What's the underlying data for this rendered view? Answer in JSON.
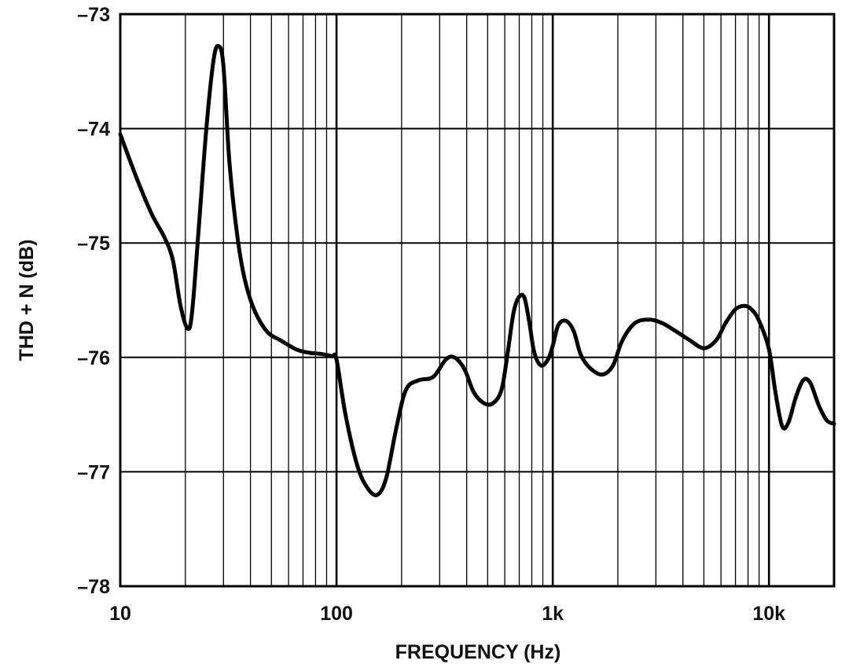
{
  "chart_data": {
    "type": "line",
    "title": "",
    "xlabel": "FREQUENCY (Hz)",
    "ylabel": "THD + N (dB)",
    "x_scale": "log",
    "xlim": [
      10,
      20000
    ],
    "ylim": [
      -78,
      -73
    ],
    "x_ticks": [
      {
        "value": 10,
        "label": "10"
      },
      {
        "value": 100,
        "label": "100"
      },
      {
        "value": 1000,
        "label": "1k"
      },
      {
        "value": 10000,
        "label": "10k"
      }
    ],
    "y_ticks": [
      {
        "value": -73,
        "label": "–73"
      },
      {
        "value": -74,
        "label": "–74"
      },
      {
        "value": -75,
        "label": "–75"
      },
      {
        "value": -76,
        "label": "–76"
      },
      {
        "value": -77,
        "label": "–77"
      },
      {
        "value": -78,
        "label": "–78"
      }
    ],
    "grid": true,
    "legend": "none",
    "line_color": "#000000",
    "series": [
      {
        "x": [
          10,
          12,
          14,
          16,
          17.5,
          19,
          20.5,
          21.5,
          23,
          25,
          27,
          28.5,
          30,
          32,
          35,
          38,
          42,
          48,
          55,
          65,
          75,
          85,
          95,
          100,
          110,
          125,
          140,
          155,
          170,
          190,
          210,
          240,
          280,
          320,
          350,
          390,
          430,
          480,
          530,
          580,
          620,
          660,
          700,
          740,
          780,
          820,
          880,
          950,
          1000,
          1060,
          1150,
          1250,
          1350,
          1500,
          1700,
          1900,
          2100,
          2400,
          2800,
          3200,
          3700,
          4300,
          5000,
          5700,
          6300,
          7000,
          7700,
          8300,
          9000,
          10000,
          10700,
          11500,
          12300,
          13300,
          14400,
          15500,
          17000,
          18500,
          20000
        ],
        "y": [
          -74.05,
          -74.45,
          -74.75,
          -74.95,
          -75.15,
          -75.55,
          -75.75,
          -75.6,
          -74.9,
          -74.0,
          -73.4,
          -73.28,
          -73.45,
          -74.3,
          -74.98,
          -75.35,
          -75.6,
          -75.78,
          -75.85,
          -75.93,
          -75.96,
          -75.97,
          -75.99,
          -76.02,
          -76.5,
          -76.95,
          -77.15,
          -77.2,
          -77.05,
          -76.6,
          -76.28,
          -76.2,
          -76.17,
          -76.02,
          -76.0,
          -76.1,
          -76.3,
          -76.4,
          -76.4,
          -76.28,
          -75.95,
          -75.6,
          -75.47,
          -75.48,
          -75.7,
          -75.95,
          -76.07,
          -76.02,
          -75.9,
          -75.72,
          -75.68,
          -75.77,
          -75.98,
          -76.1,
          -76.15,
          -76.07,
          -75.85,
          -75.7,
          -75.67,
          -75.7,
          -75.77,
          -75.85,
          -75.92,
          -75.85,
          -75.7,
          -75.58,
          -75.55,
          -75.58,
          -75.68,
          -75.93,
          -76.3,
          -76.6,
          -76.57,
          -76.35,
          -76.2,
          -76.22,
          -76.42,
          -76.55,
          -76.58
        ]
      }
    ]
  }
}
